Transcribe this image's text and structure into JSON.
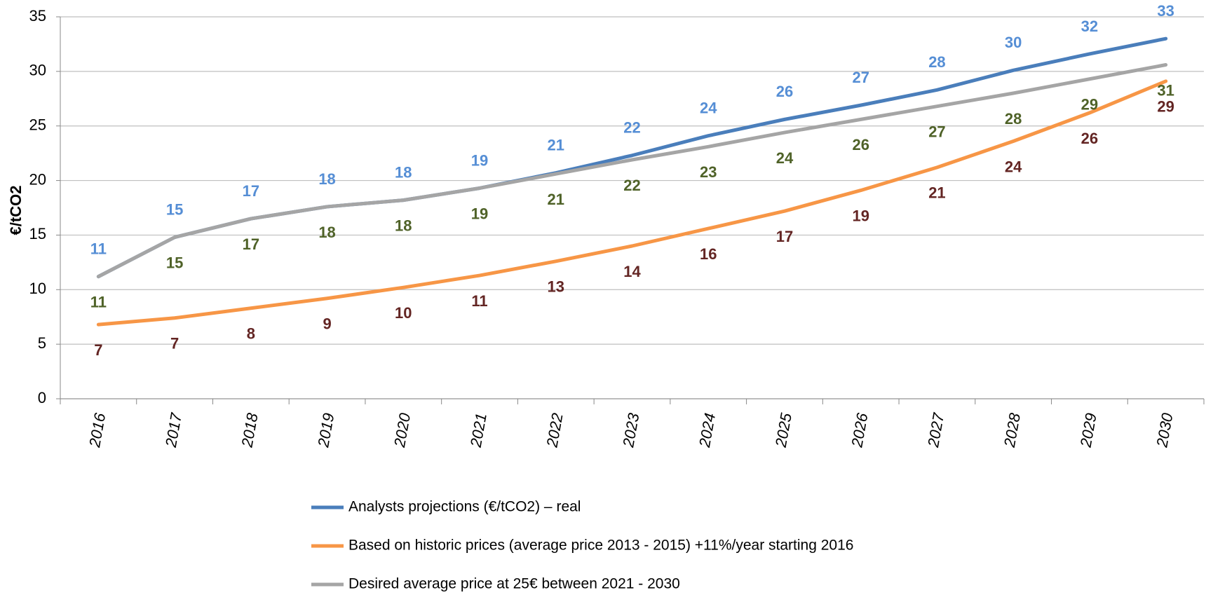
{
  "chart_data": {
    "type": "line",
    "y_label": "€/tCO2",
    "categories": [
      "2016",
      "2017",
      "2018",
      "2019",
      "2020",
      "2021",
      "2022",
      "2023",
      "2024",
      "2025",
      "2026",
      "2027",
      "2028",
      "2029",
      "2030"
    ],
    "series": [
      {
        "name": "Analysts projections  (€/tCO2) – real",
        "color": "#4a7ebb",
        "label_color": "#558ed5",
        "label_side": "above",
        "values": [
          11.2,
          14.8,
          16.5,
          17.6,
          18.2,
          19.3,
          20.7,
          22.3,
          24.1,
          25.6,
          26.9,
          28.3,
          30.1,
          31.6,
          33.0
        ],
        "value_labels": [
          "11",
          "15",
          "17",
          "18",
          "18",
          "19",
          "21",
          "22",
          "24",
          "26",
          "27",
          "28",
          "30",
          "32",
          "33"
        ]
      },
      {
        "name": "Based on historic prices  (average price 2013 - 2015) +11%/year starting 2016",
        "color": "#f79646",
        "label_color": "#632523",
        "label_side": "below",
        "values": [
          6.8,
          7.4,
          8.3,
          9.2,
          10.2,
          11.3,
          12.6,
          14.0,
          15.6,
          17.2,
          19.1,
          21.2,
          23.6,
          26.2,
          29.1
        ],
        "value_labels": [
          "7",
          "7",
          "8",
          "9",
          "10",
          "11",
          "13",
          "14",
          "16",
          "17",
          "19",
          "21",
          "24",
          "26",
          "29"
        ]
      },
      {
        "name": "Desired average price at 25€ between  2021 - 2030",
        "color": "#a5a5a5",
        "label_color": "#4f6228",
        "label_side": "below",
        "values": [
          11.2,
          14.8,
          16.5,
          17.6,
          18.2,
          19.3,
          20.6,
          21.9,
          23.1,
          24.4,
          25.6,
          26.8,
          28.0,
          29.3,
          30.6
        ],
        "value_labels": [
          "11",
          "15",
          "17",
          "18",
          "18",
          "19",
          "21",
          "22",
          "23",
          "24",
          "26",
          "27",
          "28",
          "29",
          "31"
        ]
      }
    ],
    "ylim": [
      0,
      35
    ],
    "yticks": [
      0,
      5,
      10,
      15,
      20,
      25,
      30,
      35
    ],
    "grid": true,
    "legend": "bottom"
  }
}
